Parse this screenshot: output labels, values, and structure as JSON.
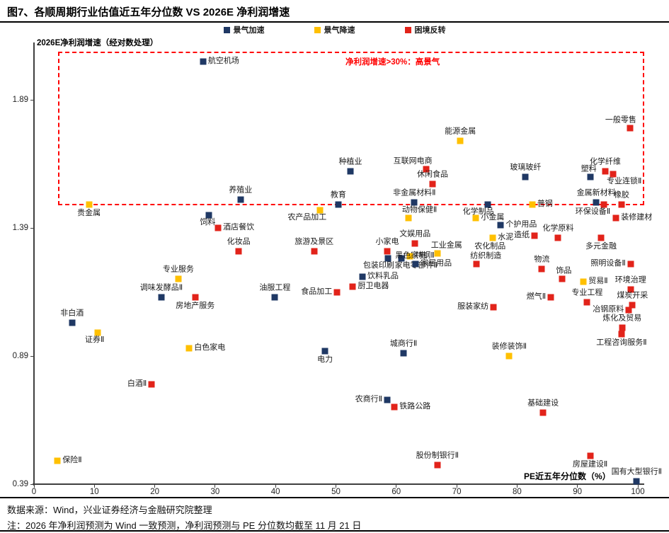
{
  "title": "图7、各顺周期行业估值近五年分位数  VS 2026E 净利润增速",
  "footer": {
    "source": "数据来源：Wind，兴业证券经济与金融研究院整理",
    "note": "注：2026 年净利润预测为 Wind 一致预测，净利润预测与 PE 分位数均截至 11 月 21 日"
  },
  "chart_data": {
    "type": "scatter",
    "ylabel": "2026E净利润增速（经对数处理）",
    "xlabel": "PE近五年分位数（%）",
    "xlim": [
      0,
      100
    ],
    "ylim": [
      0.39,
      2.11
    ],
    "xticks": [
      0,
      10,
      20,
      30,
      40,
      50,
      60,
      70,
      80,
      90,
      100
    ],
    "yticks": [
      0.39,
      0.89,
      1.39,
      1.89
    ],
    "grid": false,
    "legend_position": "top-center",
    "annotation": {
      "text": "净利润增速>30%：高景气",
      "color": "#ff0000",
      "box": {
        "x0": 4.0,
        "x1": 101.1,
        "y0": 1.478,
        "y1": 2.078
      }
    },
    "series": [
      {
        "name": "景气加速",
        "color": "#1F3864",
        "points": [
          {
            "label": "航空机场",
            "x": 28.0,
            "y": 2.04,
            "lp": "right"
          },
          {
            "label": "种植业",
            "x": 52.4,
            "y": 1.61,
            "lp": "above"
          },
          {
            "label": "玻璃玻纤",
            "x": 81.4,
            "y": 1.59,
            "lp": "above"
          },
          {
            "label": "塑料",
            "x": 92.1,
            "y": 1.59,
            "lp": "above-left"
          },
          {
            "label": "养殖业",
            "x": 34.2,
            "y": 1.5,
            "lp": "above"
          },
          {
            "label": "教育",
            "x": 50.4,
            "y": 1.48,
            "lp": "above"
          },
          {
            "label": "非金属材料Ⅱ",
            "x": 63.0,
            "y": 1.49,
            "lp": "above"
          },
          {
            "label": "饲料",
            "x": 29.0,
            "y": 1.44,
            "lp": "below-left"
          },
          {
            "label": "化学制品",
            "x": 75.1,
            "y": 1.48,
            "lp": "below-left"
          },
          {
            "label": "个护用品",
            "x": 77.3,
            "y": 1.4,
            "lp": "right"
          },
          {
            "label": "金属新材料",
            "x": 93.1,
            "y": 1.49,
            "lp": "above"
          },
          {
            "label": "包装印刷",
            "x": 58.6,
            "y": 1.27,
            "lp": "below-left"
          },
          {
            "label": "家电零部件Ⅱ",
            "x": 60.8,
            "y": 1.27,
            "lp": "below-right"
          },
          {
            "label": "家居用品",
            "x": 63.2,
            "y": 1.25,
            "lp": "right"
          },
          {
            "label": "饮料乳品",
            "x": 54.4,
            "y": 1.2,
            "lp": "right"
          },
          {
            "label": "调味发酵品Ⅱ",
            "x": 21.1,
            "y": 1.12,
            "lp": "above"
          },
          {
            "label": "油服工程",
            "x": 39.9,
            "y": 1.12,
            "lp": "above"
          },
          {
            "label": "非白酒",
            "x": 6.3,
            "y": 1.02,
            "lp": "above"
          },
          {
            "label": "电力",
            "x": 48.2,
            "y": 0.91,
            "lp": "below"
          },
          {
            "label": "城商行Ⅱ",
            "x": 61.2,
            "y": 0.9,
            "lp": "above"
          },
          {
            "label": "农商行Ⅱ",
            "x": 58.5,
            "y": 0.72,
            "lp": "left"
          },
          {
            "label": "国有大型银行Ⅱ",
            "x": 99.8,
            "y": 0.4,
            "lp": "above"
          }
        ]
      },
      {
        "name": "景气降速",
        "color": "#FFC000",
        "points": [
          {
            "label": "能源金属",
            "x": 70.6,
            "y": 1.73,
            "lp": "above"
          },
          {
            "label": "贵金属",
            "x": 9.1,
            "y": 1.48,
            "lp": "below"
          },
          {
            "label": "农产品加工",
            "x": 47.4,
            "y": 1.46,
            "lp": "below-left"
          },
          {
            "label": "动物保健Ⅱ",
            "x": 62.0,
            "y": 1.43,
            "lp": "above-right"
          },
          {
            "label": "小金属",
            "x": 73.2,
            "y": 1.43,
            "lp": "right"
          },
          {
            "label": "普钢",
            "x": 82.5,
            "y": 1.48,
            "lp": "right"
          },
          {
            "label": "水泥",
            "x": 76.0,
            "y": 1.35,
            "lp": "right"
          },
          {
            "label": "工业金属",
            "x": 66.8,
            "y": 1.29,
            "lp": "above-right"
          },
          {
            "label": "特钢Ⅱ",
            "x": 62.3,
            "y": 1.28,
            "lp": "right"
          },
          {
            "label": "专业服务",
            "x": 23.9,
            "y": 1.19,
            "lp": "above"
          },
          {
            "label": "贸易Ⅱ",
            "x": 91.0,
            "y": 1.18,
            "lp": "right"
          },
          {
            "label": "证券Ⅱ",
            "x": 10.6,
            "y": 0.98,
            "lp": "below-left"
          },
          {
            "label": "白色家电",
            "x": 25.7,
            "y": 0.92,
            "lp": "right"
          },
          {
            "label": "装修装饰Ⅱ",
            "x": 78.7,
            "y": 0.89,
            "lp": "above"
          },
          {
            "label": "保险Ⅱ",
            "x": 3.9,
            "y": 0.48,
            "lp": "right"
          }
        ]
      },
      {
        "name": "困境反转",
        "color": "#E2231A",
        "points": [
          {
            "label": "一般零售",
            "x": 98.7,
            "y": 1.78,
            "lp": "above-left"
          },
          {
            "label": "互联网电商",
            "x": 64.9,
            "y": 1.62,
            "lp": "above-left"
          },
          {
            "label": "休闲食品",
            "x": 66.0,
            "y": 1.56,
            "lp": "above"
          },
          {
            "label": "化学纤维",
            "x": 94.6,
            "y": 1.61,
            "lp": "above"
          },
          {
            "label": "专业连锁Ⅱ",
            "x": 95.9,
            "y": 1.6,
            "lp": "below-right"
          },
          {
            "label": "橡胶",
            "x": 97.3,
            "y": 1.48,
            "lp": "above"
          },
          {
            "label": "环保设备Ⅱ",
            "x": 94.4,
            "y": 1.48,
            "lp": "below-left"
          },
          {
            "label": "装修建材",
            "x": 96.4,
            "y": 1.43,
            "lp": "right"
          },
          {
            "label": "酒店餐饮",
            "x": 30.5,
            "y": 1.39,
            "lp": "right"
          },
          {
            "label": "化妆品",
            "x": 33.9,
            "y": 1.3,
            "lp": "above"
          },
          {
            "label": "旅游及景区",
            "x": 46.4,
            "y": 1.3,
            "lp": "above"
          },
          {
            "label": "文娱用品",
            "x": 63.1,
            "y": 1.33,
            "lp": "above"
          },
          {
            "label": "小家电",
            "x": 58.5,
            "y": 1.3,
            "lp": "above"
          },
          {
            "label": "黑色家电",
            "x": 59.0,
            "y": 1.28,
            "lp": "right",
            "marker": "none"
          },
          {
            "label": "造纸",
            "x": 82.9,
            "y": 1.36,
            "lp": "left"
          },
          {
            "label": "化学原料",
            "x": 86.8,
            "y": 1.35,
            "lp": "above"
          },
          {
            "label": "多元金融",
            "x": 93.9,
            "y": 1.35,
            "lp": "below"
          },
          {
            "label": "农化制品",
            "x": 74.0,
            "y": 1.345,
            "lp": "below-right",
            "marker": "none"
          },
          {
            "label": "纺织制造",
            "x": 73.3,
            "y": 1.25,
            "lp": "above-right"
          },
          {
            "label": "物流",
            "x": 84.1,
            "y": 1.23,
            "lp": "above"
          },
          {
            "label": "饰品",
            "x": 87.5,
            "y": 1.19,
            "lp": "above-right"
          },
          {
            "label": "照明设备Ⅱ",
            "x": 98.8,
            "y": 1.25,
            "lp": "left"
          },
          {
            "label": "环境治理",
            "x": 98.8,
            "y": 1.15,
            "lp": "above"
          },
          {
            "label": "燃气Ⅱ",
            "x": 85.6,
            "y": 1.12,
            "lp": "left"
          },
          {
            "label": "专业工程",
            "x": 91.6,
            "y": 1.1,
            "lp": "above"
          },
          {
            "label": "煤炭开采",
            "x": 99.1,
            "y": 1.09,
            "lp": "above"
          },
          {
            "label": "冶钢原料",
            "x": 98.5,
            "y": 1.07,
            "lp": "left"
          },
          {
            "label": "服装家纺",
            "x": 76.1,
            "y": 1.08,
            "lp": "left"
          },
          {
            "label": "炼化及贸易",
            "x": 97.4,
            "y": 1.0,
            "lp": "above"
          },
          {
            "label": "工程咨询服务Ⅱ",
            "x": 97.3,
            "y": 0.975,
            "lp": "below"
          },
          {
            "label": "房地产服务",
            "x": 26.7,
            "y": 1.12,
            "lp": "below"
          },
          {
            "label": "食品加工",
            "x": 50.2,
            "y": 1.14,
            "lp": "left"
          },
          {
            "label": "厨卫电器",
            "x": 52.8,
            "y": 1.16,
            "lp": "right"
          },
          {
            "label": "白酒Ⅱ",
            "x": 19.5,
            "y": 0.78,
            "lp": "left"
          },
          {
            "label": "铁路公路",
            "x": 59.7,
            "y": 0.69,
            "lp": "right"
          },
          {
            "label": "基础建设",
            "x": 84.3,
            "y": 0.67,
            "lp": "above"
          },
          {
            "label": "股份制银行Ⅱ",
            "x": 66.8,
            "y": 0.465,
            "lp": "above"
          },
          {
            "label": "房屋建设Ⅱ",
            "x": 92.1,
            "y": 0.5,
            "lp": "below"
          }
        ]
      }
    ]
  }
}
